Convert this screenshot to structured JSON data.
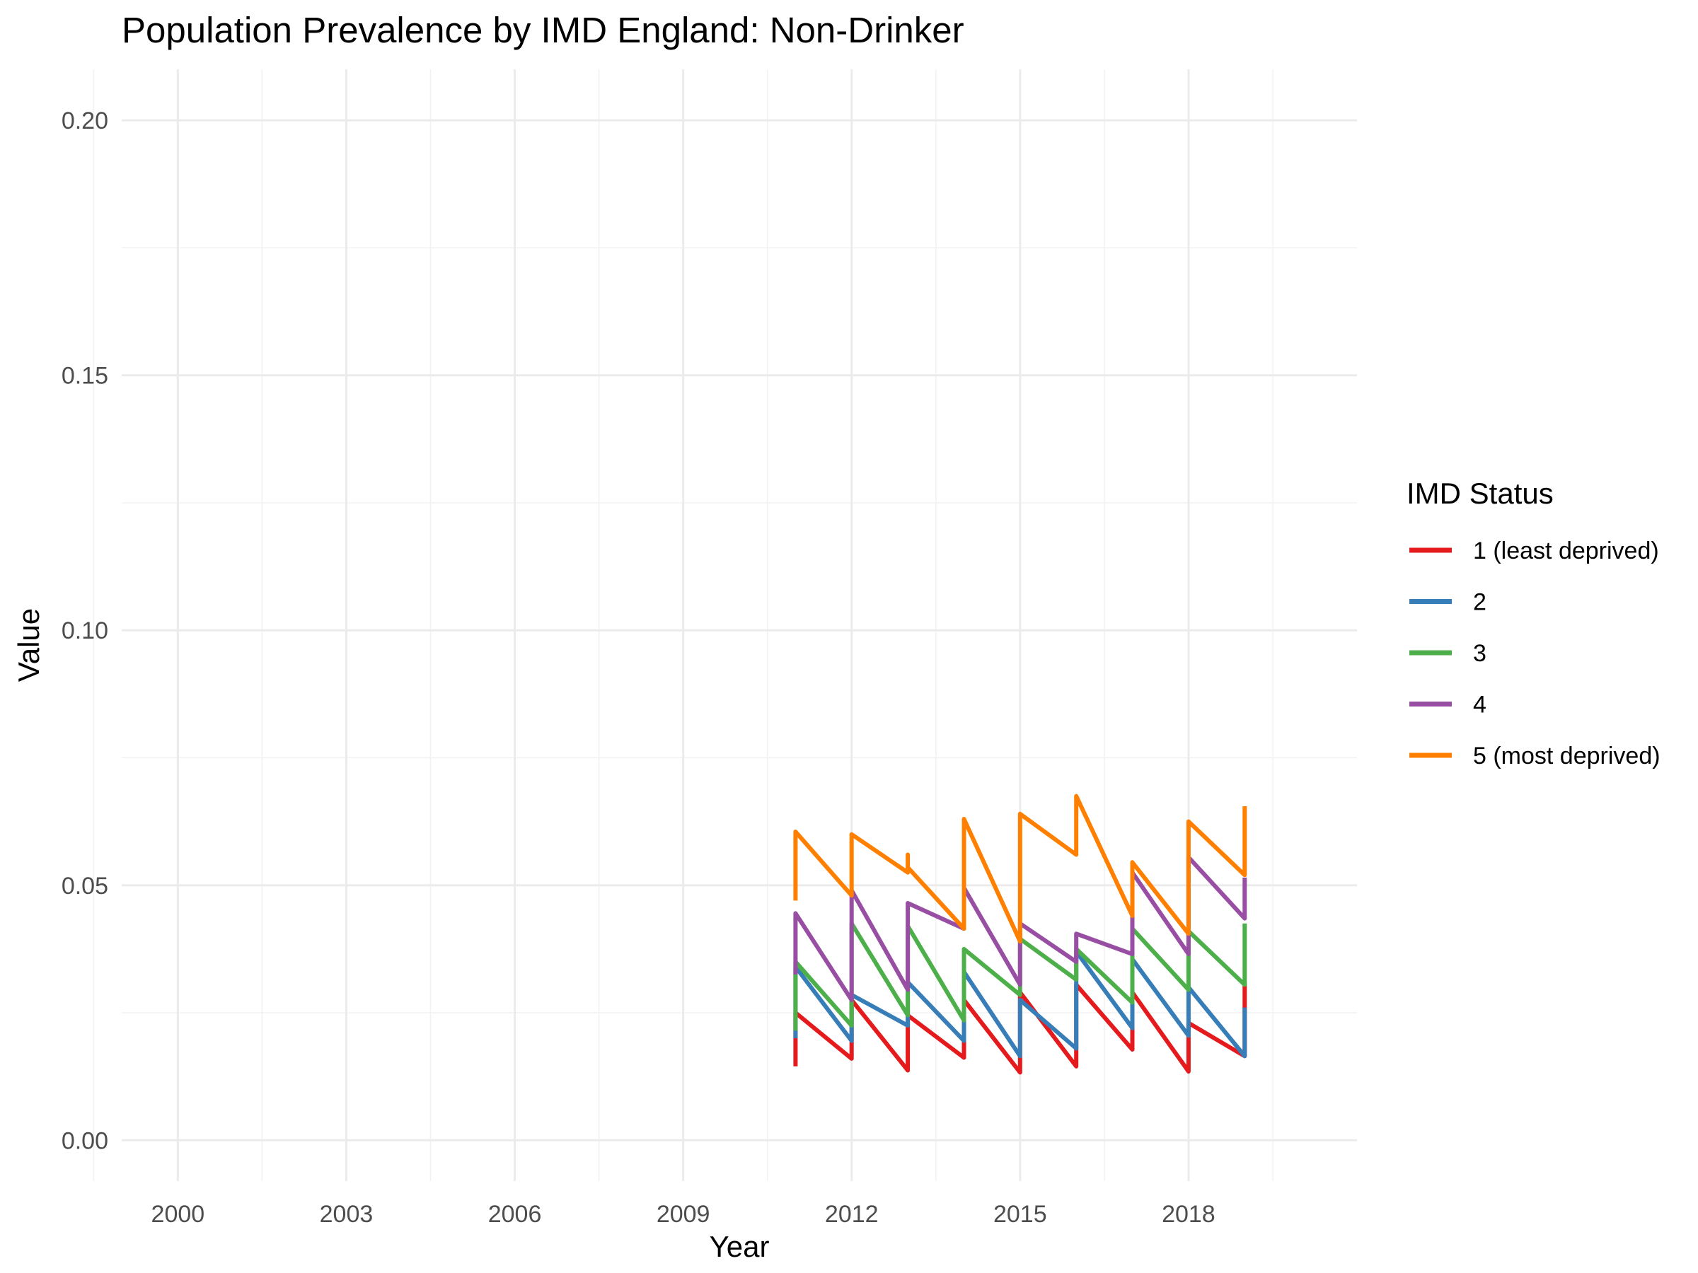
{
  "chart_data": {
    "type": "line",
    "title": "Population Prevalence by IMD England: Non-Drinker",
    "xlabel": "Year",
    "ylabel": "Value",
    "xlim": [
      1999,
      2021
    ],
    "ylim": [
      -0.008,
      0.21
    ],
    "x_ticks": [
      "2000",
      "2003",
      "2006",
      "2009",
      "2012",
      "2015",
      "2018"
    ],
    "x_tick_values": [
      2000,
      2003,
      2006,
      2009,
      2012,
      2015,
      2018
    ],
    "y_ticks": [
      "0.00",
      "0.05",
      "0.10",
      "0.15",
      "0.20"
    ],
    "y_tick_values": [
      0,
      0.05,
      0.1,
      0.15,
      0.2
    ],
    "grid": true,
    "legend": {
      "title": "IMD Status",
      "position": "right"
    },
    "series": [
      {
        "name": "1 (least deprived)",
        "color": "#E41A1C",
        "points": [
          [
            2011,
            0.0145
          ],
          [
            2011,
            0.025
          ],
          [
            2012,
            0.016
          ],
          [
            2012,
            0.0275
          ],
          [
            2013,
            0.0137
          ],
          [
            2013,
            0.0245
          ],
          [
            2014,
            0.0162
          ],
          [
            2014,
            0.0275
          ],
          [
            2015,
            0.0133
          ],
          [
            2015,
            0.029
          ],
          [
            2016,
            0.0145
          ],
          [
            2016,
            0.0305
          ],
          [
            2017,
            0.0178
          ],
          [
            2017,
            0.029
          ],
          [
            2018,
            0.0135
          ],
          [
            2018,
            0.023
          ],
          [
            2019,
            0.0165
          ],
          [
            2019,
            0.031
          ]
        ]
      },
      {
        "name": "2",
        "color": "#377EB8",
        "points": [
          [
            2011,
            0.02
          ],
          [
            2011,
            0.034
          ],
          [
            2012,
            0.0195
          ],
          [
            2012,
            0.0285
          ],
          [
            2013,
            0.0225
          ],
          [
            2013,
            0.031
          ],
          [
            2014,
            0.0195
          ],
          [
            2014,
            0.033
          ],
          [
            2015,
            0.0165
          ],
          [
            2015,
            0.0275
          ],
          [
            2016,
            0.018
          ],
          [
            2016,
            0.037
          ],
          [
            2017,
            0.022
          ],
          [
            2017,
            0.0355
          ],
          [
            2018,
            0.0205
          ],
          [
            2018,
            0.03
          ],
          [
            2019,
            0.0165
          ],
          [
            2019,
            0.026
          ]
        ]
      },
      {
        "name": "3",
        "color": "#4DAF4A",
        "points": [
          [
            2011,
            0.0215
          ],
          [
            2011,
            0.035
          ],
          [
            2012,
            0.0225
          ],
          [
            2012,
            0.0425
          ],
          [
            2013,
            0.0245
          ],
          [
            2013,
            0.042
          ],
          [
            2014,
            0.0235
          ],
          [
            2014,
            0.0375
          ],
          [
            2015,
            0.0285
          ],
          [
            2015,
            0.0395
          ],
          [
            2016,
            0.0315
          ],
          [
            2016,
            0.0375
          ],
          [
            2017,
            0.027
          ],
          [
            2017,
            0.0415
          ],
          [
            2018,
            0.0295
          ],
          [
            2018,
            0.041
          ],
          [
            2019,
            0.0305
          ],
          [
            2019,
            0.0425
          ]
        ]
      },
      {
        "name": "4",
        "color": "#984EA3",
        "points": [
          [
            2011,
            0.0325
          ],
          [
            2011,
            0.0445
          ],
          [
            2012,
            0.0275
          ],
          [
            2012,
            0.049
          ],
          [
            2013,
            0.0295
          ],
          [
            2013,
            0.0465
          ],
          [
            2014,
            0.0415
          ],
          [
            2014,
            0.0495
          ],
          [
            2015,
            0.0305
          ],
          [
            2015,
            0.0425
          ],
          [
            2016,
            0.035
          ],
          [
            2016,
            0.0405
          ],
          [
            2017,
            0.0365
          ],
          [
            2017,
            0.0525
          ],
          [
            2018,
            0.0365
          ],
          [
            2018,
            0.0555
          ],
          [
            2019,
            0.0435
          ],
          [
            2019,
            0.0515
          ]
        ]
      },
      {
        "name": "5 (most deprived)",
        "color": "#FF7F00",
        "points": [
          [
            2011,
            0.047
          ],
          [
            2011,
            0.0605
          ],
          [
            2012,
            0.048
          ],
          [
            2012,
            0.06
          ],
          [
            2013,
            0.0525
          ],
          [
            2013,
            0.056
          ],
          [
            2013,
            0.0535
          ],
          [
            2014,
            0.0415
          ],
          [
            2014,
            0.063
          ],
          [
            2015,
            0.039
          ],
          [
            2015,
            0.064
          ],
          [
            2016,
            0.056
          ],
          [
            2016,
            0.0675
          ],
          [
            2017,
            0.044
          ],
          [
            2017,
            0.0545
          ],
          [
            2018,
            0.0405
          ],
          [
            2018,
            0.0625
          ],
          [
            2019,
            0.052
          ],
          [
            2019,
            0.0655
          ]
        ]
      }
    ]
  }
}
